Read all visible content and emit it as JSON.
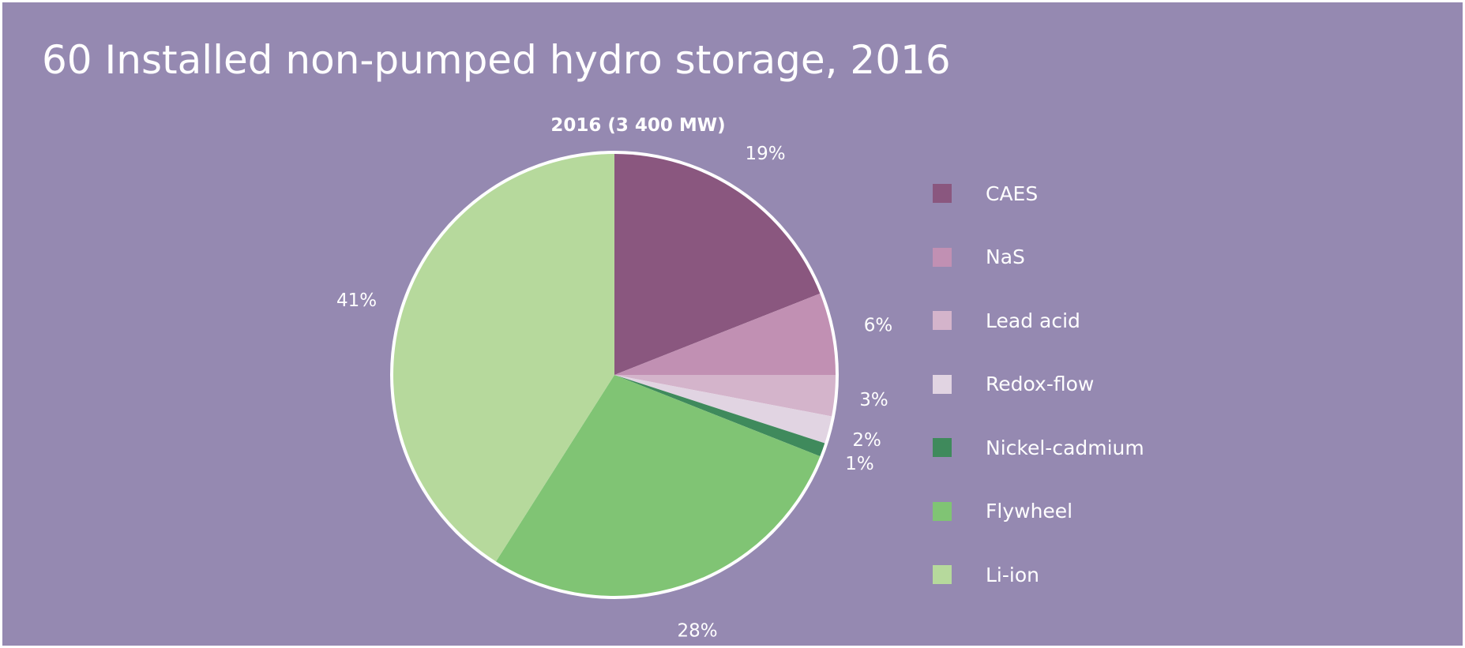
{
  "title": "60 Installed non-pumped hydro storage, 2016",
  "chart_data": {
    "type": "pie",
    "title": "2016 (3 400 MW)",
    "slices": [
      {
        "name": "CAES",
        "value": 19,
        "label": "19%",
        "color": "#8a577f"
      },
      {
        "name": "NaS",
        "value": 6,
        "label": "6%",
        "color": "#c190b3"
      },
      {
        "name": "Lead acid",
        "value": 3,
        "label": "3%",
        "color": "#d4b4cb"
      },
      {
        "name": "Redox-flow",
        "value": 2,
        "label": "2%",
        "color": "#e1d4e2"
      },
      {
        "name": "Nickel-cadmium",
        "value": 1,
        "label": "1%",
        "color": "#3f8a5c"
      },
      {
        "name": "Flywheel",
        "value": 28,
        "label": "28%",
        "color": "#80c474"
      },
      {
        "name": "Li-ion",
        "value": 41,
        "label": "41%",
        "color": "#b6d99c"
      }
    ],
    "legend_position": "right"
  },
  "colors": {
    "background": "#9589b1",
    "text": "#ffffff",
    "pie_border": "#ffffff"
  }
}
